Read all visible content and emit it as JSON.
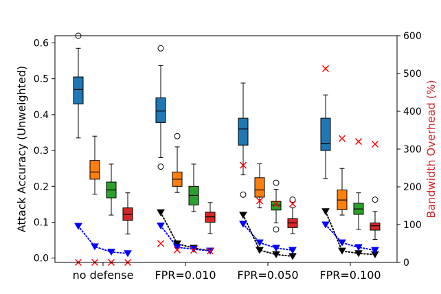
{
  "chart_data": {
    "type": "box",
    "categories": [
      "no defense",
      "FPR=0.010",
      "FPR=0.050",
      "FPR=0.100"
    ],
    "ylabel": "Attack Accuracy (Unweighted)",
    "ylabel_right": "Bandwidth Overhead (%)",
    "ylim": [
      -0.012,
      0.62
    ],
    "y2lim": [
      0,
      600
    ],
    "yticks": [
      0.0,
      0.1,
      0.2,
      0.3,
      0.4,
      0.5,
      0.6
    ],
    "y2ticks": [
      0,
      100,
      200,
      300,
      400,
      500,
      600
    ],
    "colors": {
      "blue": "#1f77b4",
      "orange": "#ff7f0e",
      "green": "#2ca02c",
      "red": "#d62728",
      "accent_label": "#d62728",
      "marker_blue": "#0000ff",
      "marker_black": "#000000",
      "overhead": "#ff0000"
    },
    "groups": [
      {
        "category": "no defense",
        "boxes": [
          {
            "color": "blue",
            "whislo": 0.335,
            "q1": 0.43,
            "med": 0.47,
            "q3": 0.505,
            "whishi": 0.585,
            "fliers": [
              0.62
            ]
          },
          {
            "color": "orange",
            "whislo": 0.178,
            "q1": 0.22,
            "med": 0.24,
            "q3": 0.272,
            "whishi": 0.34,
            "fliers": []
          },
          {
            "color": "green",
            "whislo": 0.12,
            "q1": 0.168,
            "med": 0.19,
            "q3": 0.212,
            "whishi": 0.262,
            "fliers": []
          },
          {
            "color": "red",
            "whislo": 0.067,
            "q1": 0.105,
            "med": 0.122,
            "q3": 0.14,
            "whishi": 0.182,
            "fliers": []
          }
        ],
        "blue_markers": [
          0.089,
          0.032,
          0.017,
          0.013
        ],
        "black_markers": [],
        "overhead": [
          0,
          0,
          0,
          0
        ]
      },
      {
        "category": "FPR=0.010",
        "boxes": [
          {
            "color": "blue",
            "whislo": 0.28,
            "q1": 0.378,
            "med": 0.41,
            "q3": 0.447,
            "whishi": 0.537,
            "fliers": [
              0.585,
              0.255
            ]
          },
          {
            "color": "orange",
            "whislo": 0.183,
            "q1": 0.2,
            "med": 0.22,
            "q3": 0.24,
            "whishi": 0.31,
            "fliers": [
              0.34
            ]
          },
          {
            "color": "green",
            "whislo": 0.13,
            "q1": 0.148,
            "med": 0.175,
            "q3": 0.2,
            "whishi": 0.262,
            "fliers": []
          },
          {
            "color": "red",
            "whislo": 0.068,
            "q1": 0.1,
            "med": 0.115,
            "q3": 0.128,
            "whishi": 0.155,
            "fliers": []
          }
        ],
        "blue_markers": [
          0.09,
          0.03,
          0.025,
          0.02
        ],
        "black_markers": [
          0.127,
          0.04,
          0.028,
          0.02
        ],
        "overhead": [
          50,
          33,
          32,
          30
        ]
      },
      {
        "category": "FPR=0.050",
        "boxes": [
          {
            "color": "blue",
            "whislo": 0.232,
            "q1": 0.315,
            "med": 0.36,
            "q3": 0.39,
            "whishi": 0.488,
            "fliers": [
              0.177
            ]
          },
          {
            "color": "orange",
            "whislo": 0.14,
            "q1": 0.17,
            "med": 0.19,
            "q3": 0.224,
            "whishi": 0.263,
            "fliers": []
          },
          {
            "color": "green",
            "whislo": 0.098,
            "q1": 0.134,
            "med": 0.148,
            "q3": 0.158,
            "whishi": 0.192,
            "fliers": [
              0.21,
              0.08
            ]
          },
          {
            "color": "red",
            "whislo": 0.068,
            "q1": 0.085,
            "med": 0.098,
            "q3": 0.11,
            "whishi": 0.14,
            "fliers": [
              0.163
            ]
          }
        ],
        "blue_markers": [
          0.095,
          0.043,
          0.028,
          0.022
        ],
        "black_markers": [
          0.12,
          0.022,
          0.01,
          0.005
        ],
        "overhead": [
          257,
          163,
          155,
          155
        ]
      },
      {
        "category": "FPR=0.100",
        "boxes": [
          {
            "color": "blue",
            "whislo": 0.222,
            "q1": 0.3,
            "med": 0.32,
            "q3": 0.39,
            "whishi": 0.455,
            "fliers": []
          },
          {
            "color": "orange",
            "whislo": 0.12,
            "q1": 0.135,
            "med": 0.162,
            "q3": 0.19,
            "whishi": 0.25,
            "fliers": []
          },
          {
            "color": "green",
            "whislo": 0.08,
            "q1": 0.122,
            "med": 0.137,
            "q3": 0.153,
            "whishi": 0.182,
            "fliers": []
          },
          {
            "color": "red",
            "whislo": 0.052,
            "q1": 0.078,
            "med": 0.09,
            "q3": 0.098,
            "whishi": 0.13,
            "fliers": [
              0.163
            ]
          }
        ],
        "blue_markers": [
          0.093,
          0.043,
          0.03,
          0.022
        ],
        "black_markers": [
          0.13,
          0.02,
          0.013,
          0.01
        ],
        "overhead": [
          513,
          328,
          320,
          313
        ]
      }
    ]
  }
}
